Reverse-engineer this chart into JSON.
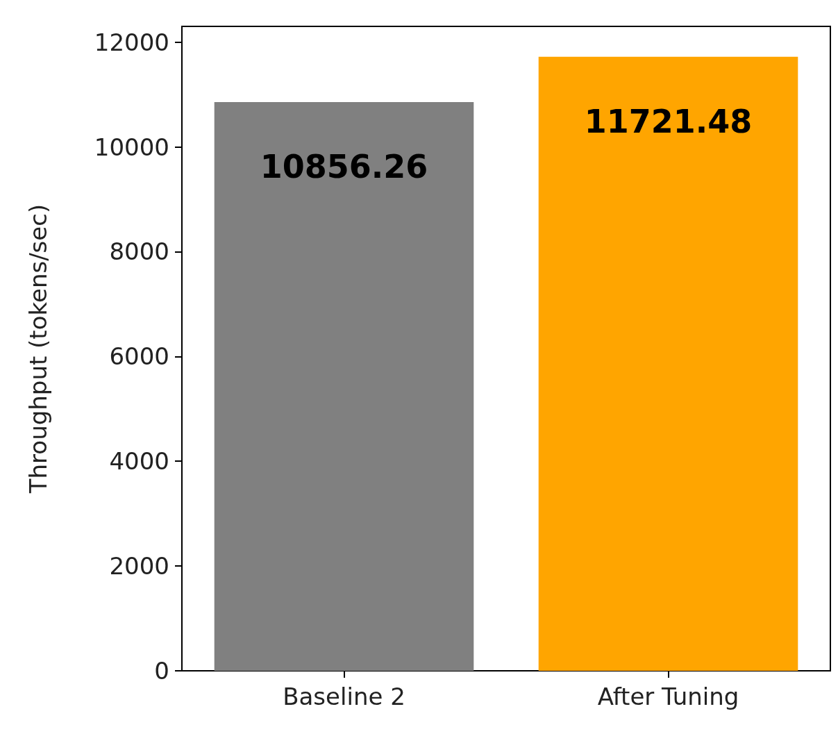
{
  "chart_data": {
    "type": "bar",
    "ylabel": "Throughput (tokens/sec)",
    "categories": [
      "Baseline 2",
      "After Tuning"
    ],
    "values": [
      10856.26,
      11721.48
    ],
    "colors": [
      "#808080",
      "#ffa500"
    ],
    "ylim": [
      0,
      12300
    ],
    "yticks": [
      0,
      2000,
      4000,
      6000,
      8000,
      10000,
      12000
    ],
    "data_labels": true,
    "grid": false
  }
}
